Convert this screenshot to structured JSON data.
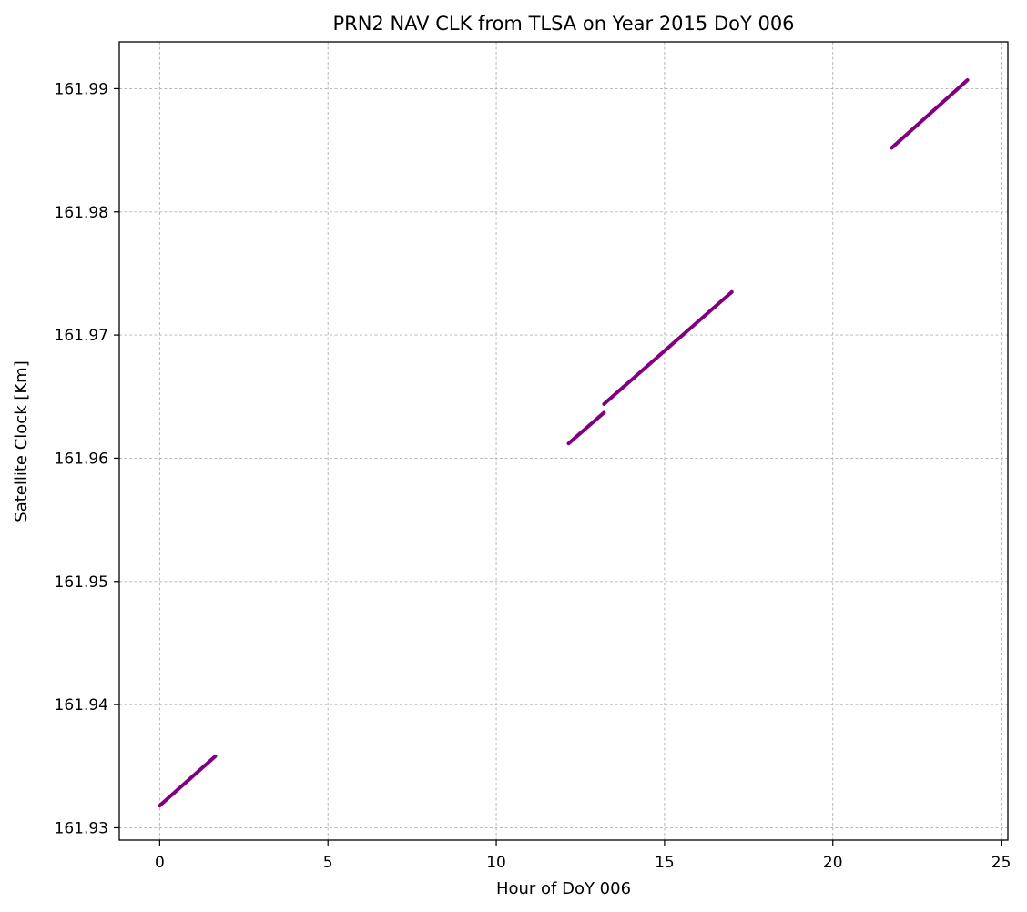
{
  "chart_data": {
    "type": "line",
    "title": "PRN2 NAV CLK from TLSA on Year 2015 DoY 006",
    "xlabel": "Hour of DoY 006",
    "ylabel": "Satellite Clock [Km]",
    "xlim": [
      -1.2,
      25.2
    ],
    "ylim": [
      161.929,
      161.9938
    ],
    "x_ticks": [
      0,
      5,
      10,
      15,
      20,
      25
    ],
    "x_tick_labels": [
      "0",
      "5",
      "10",
      "15",
      "20",
      "25"
    ],
    "y_ticks": [
      161.93,
      161.94,
      161.95,
      161.96,
      161.97,
      161.98,
      161.99
    ],
    "y_tick_labels": [
      "161.93",
      "161.94",
      "161.95",
      "161.96",
      "161.97",
      "161.98",
      "161.99"
    ],
    "grid": true,
    "grid_style": "dashed",
    "series_color": "#800080",
    "series": [
      {
        "x": [
          0.0,
          1.65
        ],
        "y": [
          161.9318,
          161.9358
        ]
      },
      {
        "x": [
          12.15,
          13.2
        ],
        "y": [
          161.9612,
          161.9637
        ]
      },
      {
        "x": [
          13.2,
          17.0
        ],
        "y": [
          161.9644,
          161.9735
        ]
      },
      {
        "x": [
          21.75,
          24.0
        ],
        "y": [
          161.9852,
          161.9907
        ]
      }
    ]
  }
}
